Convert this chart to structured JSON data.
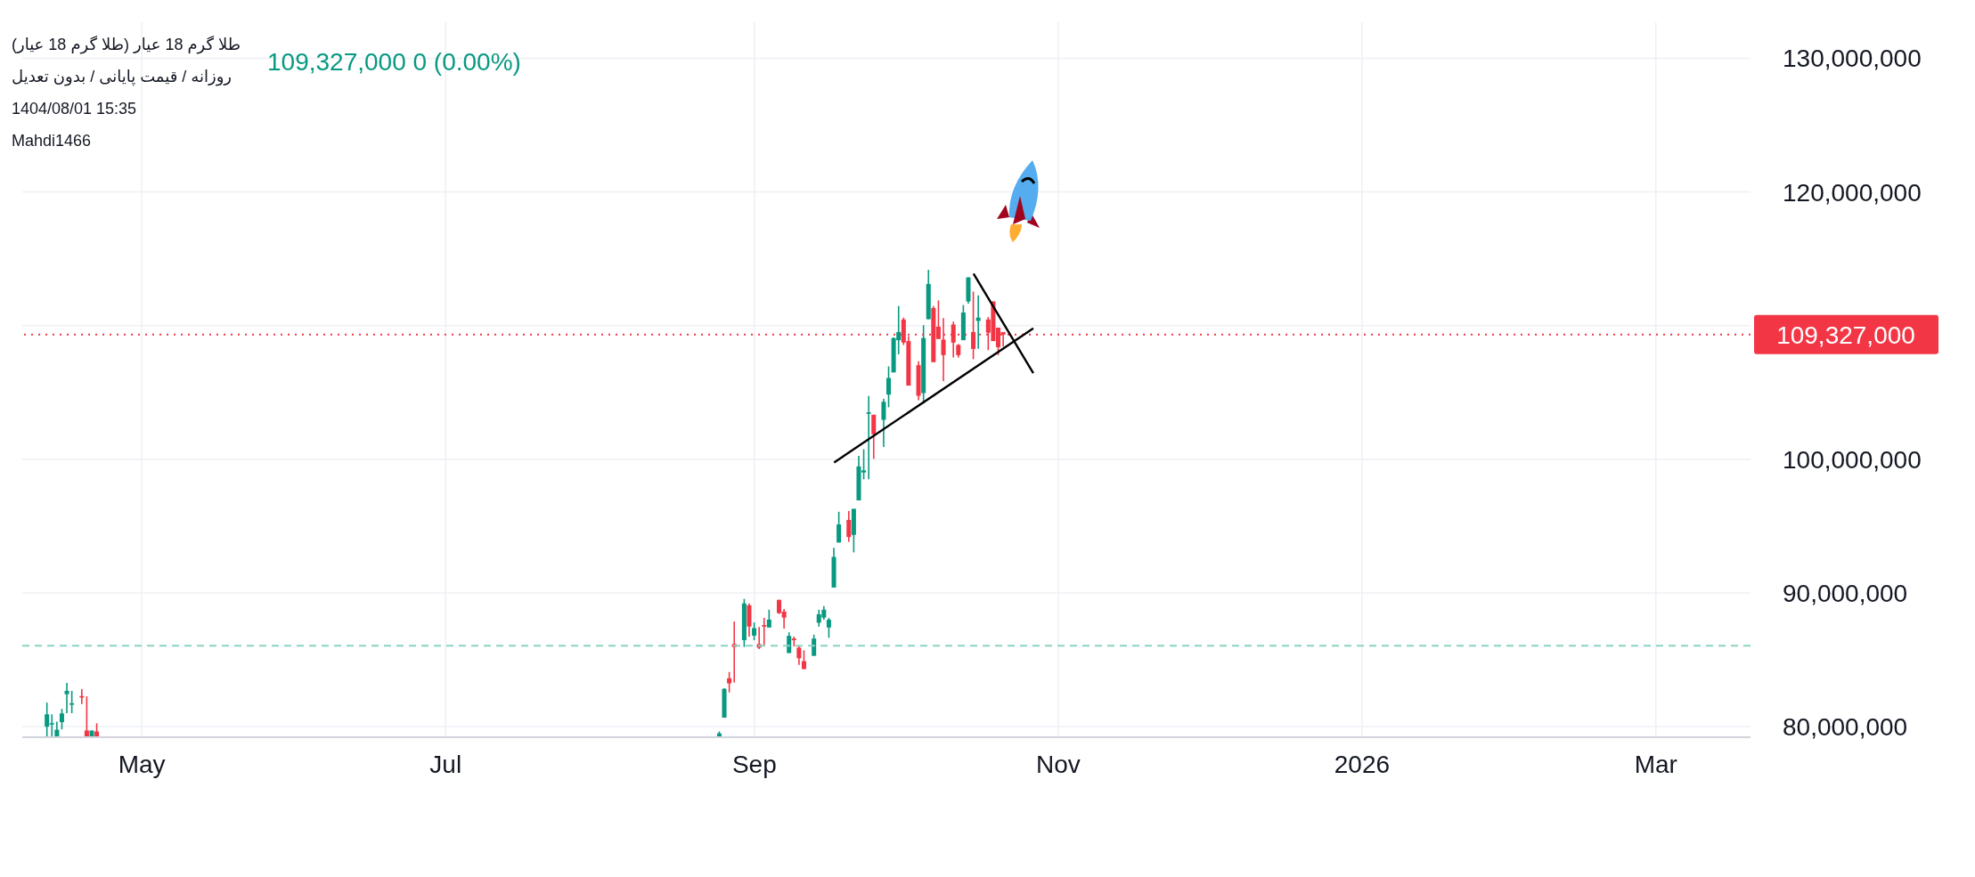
{
  "chart_data": {
    "type": "candlestick",
    "title": "طلا گرم 18 عیار (طلا گرم 18 عیار)",
    "subtitle": "روزانه / قیمت پایانی / بدون تعدیل",
    "annotations": [
      "109,327,000  0 (0.00%)",
      "1404/08/01 15:35",
      "Mahdi1466"
    ],
    "x": [
      "2025-04-12",
      "2025-04-13",
      "2025-04-14",
      "2025-04-15",
      "2025-04-16",
      "2025-04-17",
      "2025-04-19",
      "2025-04-20",
      "2025-04-21",
      "2025-04-22",
      "2025-08-25",
      "2025-08-26",
      "2025-08-27",
      "2025-08-28",
      "2025-08-30",
      "2025-08-31",
      "2025-09-01",
      "2025-09-02",
      "2025-09-03",
      "2025-09-04",
      "2025-09-06",
      "2025-09-07",
      "2025-09-08",
      "2025-09-09",
      "2025-09-10",
      "2025-09-11",
      "2025-09-13",
      "2025-09-14",
      "2025-09-15",
      "2025-09-16",
      "2025-09-17",
      "2025-09-18",
      "2025-09-20",
      "2025-09-21",
      "2025-09-22",
      "2025-09-23",
      "2025-09-24",
      "2025-09-25",
      "2025-09-27",
      "2025-09-28",
      "2025-09-29",
      "2025-09-30",
      "2025-10-01",
      "2025-10-02",
      "2025-10-04",
      "2025-10-05",
      "2025-10-06",
      "2025-10-07",
      "2025-10-08",
      "2025-10-09",
      "2025-10-11",
      "2025-10-12",
      "2025-10-13",
      "2025-10-14",
      "2025-10-15",
      "2025-10-16",
      "2025-10-18",
      "2025-10-19",
      "2025-10-20",
      "2025-10-21"
    ],
    "ohlc": [
      [
        79990000,
        81790000,
        79220000,
        80910000
      ],
      [
        80200000,
        80910000,
        79220000,
        80250000
      ],
      [
        79220000,
        80370000,
        79220000,
        79760000
      ],
      [
        80330000,
        81320000,
        79790000,
        80980000
      ],
      [
        82420000,
        83270000,
        81000000,
        82670000
      ],
      [
        81630000,
        82670000,
        81000000,
        81740000
      ],
      [
        82280000,
        82800000,
        81680000,
        82170000
      ],
      [
        79700000,
        82260000,
        79220000,
        79220000
      ],
      [
        79220000,
        79700000,
        79220000,
        79700000
      ],
      [
        79630000,
        80240000,
        79220000,
        79220000
      ],
      [
        79220000,
        79630000,
        79220000,
        79490000
      ],
      [
        80660000,
        82870000,
        80660000,
        82820000
      ],
      [
        83610000,
        84080000,
        82550000,
        83230000
      ],
      [
        86170000,
        87860000,
        83290000,
        85950000
      ],
      [
        86460000,
        89550000,
        85950000,
        89210000
      ],
      [
        89070000,
        89210000,
        86730000,
        87480000
      ],
      [
        86800000,
        87790000,
        86460000,
        87360000
      ],
      [
        86170000,
        87450000,
        85790000,
        85900000
      ],
      [
        87590000,
        88130000,
        86000000,
        87480000
      ],
      [
        87410000,
        88740000,
        87410000,
        88000000
      ],
      [
        89480000,
        89480000,
        88420000,
        88490000
      ],
      [
        88600000,
        88800000,
        87320000,
        88150000
      ],
      [
        85500000,
        87050000,
        85500000,
        86780000
      ],
      [
        86580000,
        86730000,
        85990000,
        86460000
      ],
      [
        85900000,
        85990000,
        84620000,
        85110000
      ],
      [
        84890000,
        85700000,
        84300000,
        84300000
      ],
      [
        85290000,
        86870000,
        85290000,
        86580000
      ],
      [
        87770000,
        88740000,
        87480000,
        88400000
      ],
      [
        88150000,
        89010000,
        88000000,
        88740000
      ],
      [
        87410000,
        88130000,
        86640000,
        87990000
      ],
      [
        90400000,
        93370000,
        90400000,
        92690000
      ],
      [
        93770000,
        96070000,
        93770000,
        95120000
      ],
      [
        95460000,
        96130000,
        93820000,
        94180000
      ],
      [
        94340000,
        96290000,
        93030000,
        96290000
      ],
      [
        96920000,
        100250000,
        96920000,
        99460000
      ],
      [
        99010000,
        100750000,
        98500000,
        99170000
      ],
      [
        103400000,
        104730000,
        98500000,
        103510000
      ],
      [
        103330000,
        103330000,
        100030000,
        101870000
      ],
      [
        102950000,
        104520000,
        100920000,
        104300000
      ],
      [
        104840000,
        106950000,
        103890000,
        106080000
      ],
      [
        106500000,
        109110000,
        106500000,
        109070000
      ],
      [
        108910000,
        111470000,
        107850000,
        109520000
      ],
      [
        110460000,
        110600000,
        108550000,
        108730000
      ],
      [
        108840000,
        109220000,
        105510000,
        105510000
      ],
      [
        107040000,
        107340000,
        104410000,
        104750000
      ],
      [
        104950000,
        110030000,
        104160000,
        109070000
      ],
      [
        110480000,
        114170000,
        110480000,
        113120000
      ],
      [
        111320000,
        111470000,
        107270000,
        107270000
      ],
      [
        109920000,
        111880000,
        109000000,
        109000000
      ],
      [
        108950000,
        110570000,
        105850000,
        107790000
      ],
      [
        110080000,
        110300000,
        107610000,
        108730000
      ],
      [
        108550000,
        108620000,
        107610000,
        107790000
      ],
      [
        108910000,
        111540000,
        108910000,
        110980000
      ],
      [
        111810000,
        113610000,
        111650000,
        113610000
      ],
      [
        109520000,
        112550000,
        107490000,
        108260000
      ],
      [
        110350000,
        112260000,
        108260000,
        110600000
      ],
      [
        110460000,
        110640000,
        108170000,
        109470000
      ],
      [
        111810000,
        111810000,
        108840000,
        108840000
      ],
      [
        109850000,
        109850000,
        107790000,
        108390000
      ],
      [
        109520000,
        109520000,
        108440000,
        109327000
      ]
    ],
    "colors": [
      "#089981",
      "#089981",
      "#089981",
      "#089981",
      "#089981",
      "#089981",
      "#f23645",
      "#f23645",
      "#089981",
      "#f23645",
      "#089981",
      "#089981",
      "#f23645",
      "#f23645",
      "#089981",
      "#f23645",
      "#089981",
      "#f23645",
      "#f23645",
      "#089981",
      "#f23645",
      "#f23645",
      "#089981",
      "#f23645",
      "#f23645",
      "#f23645",
      "#089981",
      "#089981",
      "#089981",
      "#089981",
      "#089981",
      "#089981",
      "#f23645",
      "#089981",
      "#089981",
      "#089981",
      "#089981",
      "#f23645",
      "#089981",
      "#089981",
      "#089981",
      "#089981",
      "#f23645",
      "#f23645",
      "#f23645",
      "#089981",
      "#089981",
      "#f23645",
      "#f23645",
      "#f23645",
      "#f23645",
      "#f23645",
      "#089981",
      "#089981",
      "#f23645",
      "#089981",
      "#f23645",
      "#f23645",
      "#f23645",
      "#f23645"
    ],
    "series": [
      {
        "type": "line",
        "color": "#000000",
        "x": [
          "2025-09-17",
          "2025-10-27"
        ],
        "values": [
          99760000,
          109790000
        ]
      },
      {
        "type": "line",
        "color": "#000000",
        "x": [
          "2025-10-15",
          "2025-10-27"
        ],
        "values": [
          113880000,
          106440000
        ]
      }
    ],
    "xlim": [
      "2025-04-07",
      "2026-03-20"
    ],
    "xticks": [
      {
        "value": "2025-05-01",
        "label": "May"
      },
      {
        "value": "2025-07-01",
        "label": "Jul"
      },
      {
        "value": "2025-09-01",
        "label": "Sep"
      },
      {
        "value": "2025-11-01",
        "label": "Nov"
      },
      {
        "value": "2026-01-01",
        "label": "2026"
      },
      {
        "value": "2026-03-01",
        "label": "Mar"
      }
    ],
    "ylim": [
      79200000,
      132700000
    ],
    "yticks": [
      {
        "value": 80000000,
        "label": "80,000,000"
      },
      {
        "value": 90000000,
        "label": "90,000,000"
      },
      {
        "value": 100000000,
        "label": "100,000,000"
      },
      {
        "value": 110000000,
        "label": null
      },
      {
        "value": 120000000,
        "label": "120,000,000"
      },
      {
        "value": 130000000,
        "label": "130,000,000"
      }
    ],
    "grid": true,
    "ref_lines": [
      {
        "axis": "y",
        "value": 109327000,
        "label": "109,327,000",
        "color": "#f23645",
        "line_style": "dotted"
      },
      {
        "axis": "y",
        "value": 86040000,
        "color": "#89d3c3",
        "line_style": "dashed"
      }
    ]
  }
}
